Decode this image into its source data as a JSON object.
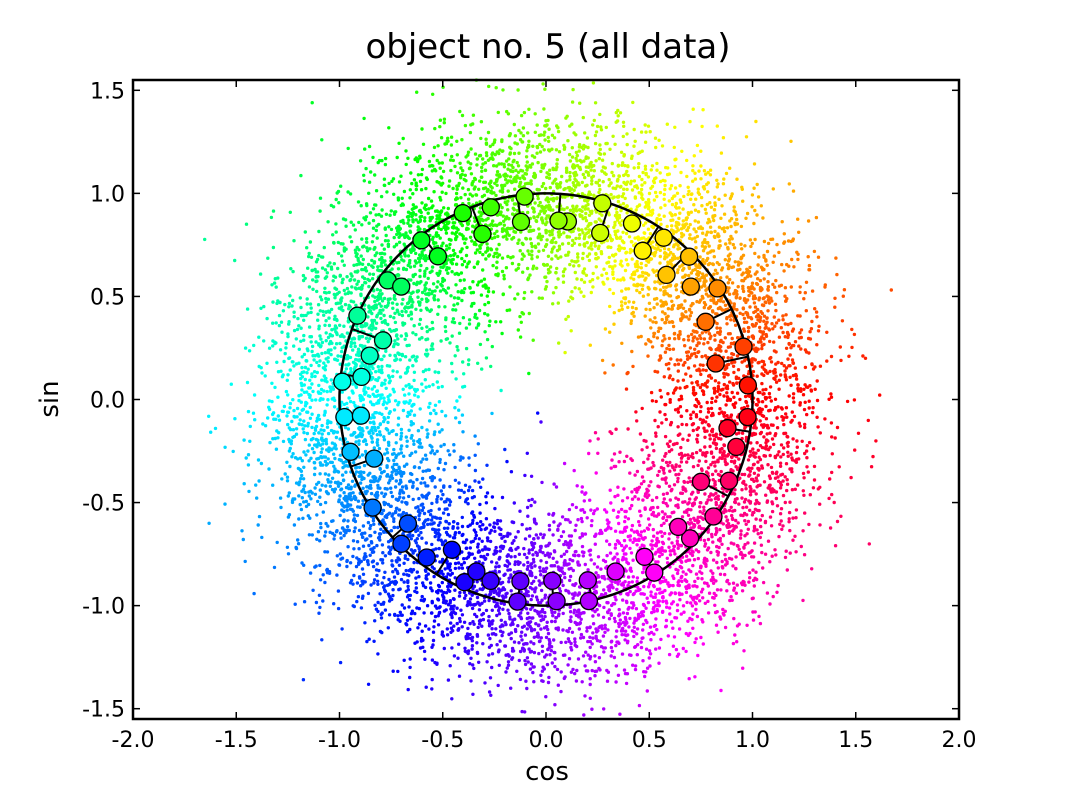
{
  "chart_data": {
    "type": "scatter",
    "title": "object no. 5 (all data)",
    "xlabel": "cos",
    "ylabel": "sin",
    "xlim": [
      -2.0,
      2.0
    ],
    "ylim": [
      -1.55,
      1.55
    ],
    "x_ticks": [
      "-2.0",
      "-1.5",
      "-1.0",
      "-0.5",
      "0.0",
      "0.5",
      "1.0",
      "1.5",
      "2.0"
    ],
    "y_ticks": [
      "-1.5",
      "-1.0",
      "-0.5",
      "0.0",
      "0.5",
      "1.0",
      "1.5"
    ],
    "x_tick_values": [
      -2.0,
      -1.5,
      -1.0,
      -0.5,
      0.0,
      0.5,
      1.0,
      1.5,
      2.0
    ],
    "y_tick_values": [
      -1.5,
      -1.0,
      -0.5,
      0.0,
      0.5,
      1.0,
      1.5
    ],
    "grid": false,
    "colormap": "hsv hue by angle",
    "scatter_cloud": {
      "description_of_distribution": "noisy ring around the unit circle",
      "center_radius": 1.0,
      "radial_spread": 0.22,
      "approx_point_count": 9000
    },
    "unit_circle_curve": {
      "radius": 1.0,
      "color": "#000000"
    },
    "markers_on_circle": {
      "angle_degrees": [
        4,
        15,
        33,
        38,
        45,
        54,
        64,
        74,
        83,
        96,
        106,
        114,
        128,
        143,
        156,
        166,
        175,
        185,
        195,
        212,
        225,
        233,
        246,
        253,
        262,
        273,
        282,
        292,
        302,
        316,
        325,
        336,
        346,
        355
      ],
      "radius_values": [
        0.98,
        0.99,
        0.99,
        0.89,
        0.98,
        0.97,
        0.95,
        0.99,
        0.87,
        0.99,
        0.97,
        0.99,
        0.98,
        0.96,
        1.0,
        0.88,
        0.99,
        0.98,
        0.98,
        0.99,
        0.99,
        0.96,
        0.97,
        0.92,
        0.99,
        0.98,
        1.0,
        0.9,
        0.99,
        0.97,
        0.99,
        0.97,
        0.95,
        0.98
      ]
    },
    "marker_pairs_inner": {
      "angle_degrees": [
        12,
        26,
        46,
        57,
        72,
        86,
        98,
        111,
        127,
        142,
        160,
        173,
        185,
        199,
        222,
        238,
        248,
        262,
        272,
        283,
        302,
        316,
        332,
        351
      ],
      "radius_values": [
        0.84,
        0.86,
        0.84,
        0.86,
        0.85,
        0.87,
        0.87,
        0.86,
        0.87,
        0.89,
        0.84,
        0.9,
        0.9,
        0.88,
        0.9,
        0.86,
        0.9,
        0.89,
        0.88,
        0.9,
        0.9,
        0.89,
        0.85,
        0.89
      ]
    }
  },
  "colors": {
    "background": "#ffffff",
    "axes_frame": "#000000",
    "marker_edge": "#000000"
  }
}
